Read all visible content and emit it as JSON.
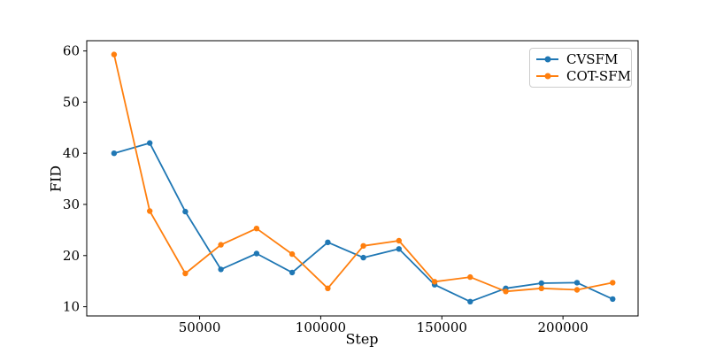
{
  "figure": {
    "background": "#ffffff",
    "axis_color": "#000000"
  },
  "chart_data": {
    "type": "line",
    "title": "",
    "xlabel": "Step",
    "ylabel": "FID",
    "x": [
      14700,
      29400,
      44100,
      58800,
      73500,
      88200,
      102900,
      117600,
      132300,
      147000,
      161700,
      176400,
      191100,
      205800,
      220500
    ],
    "series": [
      {
        "name": "CVSFM",
        "color": "#1f77b4",
        "values": [
          40.0,
          42.0,
          28.6,
          17.3,
          20.4,
          16.7,
          22.6,
          19.6,
          21.3,
          14.3,
          11.0,
          13.6,
          14.6,
          14.7,
          11.5
        ]
      },
      {
        "name": "COT-SFM",
        "color": "#ff7f0e",
        "values": [
          59.3,
          28.7,
          16.5,
          22.1,
          25.3,
          20.3,
          13.6,
          21.9,
          22.9,
          14.9,
          15.8,
          13.0,
          13.6,
          13.3,
          14.7
        ]
      }
    ],
    "xlim": [
      3400,
      231000
    ],
    "ylim": [
      8.2,
      62.0
    ],
    "x_ticks": [
      50000,
      100000,
      150000,
      200000
    ],
    "y_ticks": [
      10,
      20,
      30,
      40,
      50,
      60
    ],
    "grid": false,
    "legend_position": "upper right",
    "marker": "point",
    "line_width": 1.8,
    "marker_radius": 3.2
  }
}
